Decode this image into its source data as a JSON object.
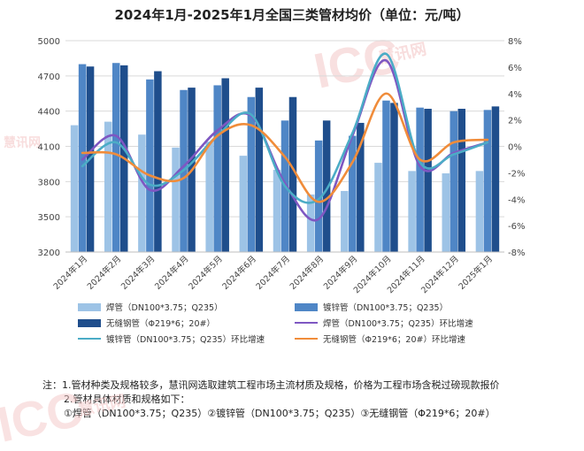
{
  "title": "2024年1月-2025年1月全国三类管材均价（单位：元/吨）",
  "colors": {
    "bar1": "#9DC3E6",
    "bar2": "#4F86C6",
    "bar3": "#1F4E8C",
    "line1": "#7E57C2",
    "line2": "#4BACC6",
    "line3": "#F08C3A"
  },
  "chart_data": {
    "type": "bar",
    "categories": [
      "2024年1月",
      "2024年2月",
      "2024年3月",
      "2024年4月",
      "2024年5月",
      "2024年6月",
      "2024年7月",
      "2024年8月",
      "2024年9月",
      "2024年10月",
      "2024年11月",
      "2024年12月",
      "2025年1月"
    ],
    "ylim": [
      3200,
      5000
    ],
    "yticks": [
      "5000",
      "4700",
      "4400",
      "4100",
      "3800",
      "3500",
      "3200"
    ],
    "y2lim": [
      -8,
      8
    ],
    "y2ticks": [
      "8%",
      "6%",
      "4%",
      "2%",
      "0%",
      "-2%",
      "-4%",
      "-6%",
      "-8%"
    ],
    "grid": true,
    "legend_position": "bottom",
    "series": [
      {
        "name": "焊管（DN100*3.75；Q235）",
        "kind": "bar",
        "axis": "left",
        "values": [
          4280,
          4310,
          4200,
          4090,
          4140,
          4020,
          3900,
          3690,
          3720,
          3960,
          3890,
          3870,
          3890
        ]
      },
      {
        "name": "镀锌管（DN100*3.75；Q235）",
        "kind": "bar",
        "axis": "left",
        "values": [
          4800,
          4810,
          4670,
          4580,
          4620,
          4520,
          4320,
          4150,
          4190,
          4490,
          4430,
          4400,
          4410
        ]
      },
      {
        "name": "无缝钢管（Φ219*6；20#）",
        "kind": "bar",
        "axis": "left",
        "values": [
          4780,
          4790,
          4740,
          4600,
          4680,
          4600,
          4520,
          4320,
          4300,
          4470,
          4420,
          4420,
          4440
        ]
      },
      {
        "name": "焊管（DN100*3.75；Q235）环比增速",
        "kind": "line",
        "axis": "right",
        "values": [
          -1.0,
          0.8,
          -3.3,
          -1.5,
          1.2,
          2.3,
          -2.8,
          -5.5,
          0.8,
          6.5,
          -1.5,
          -0.5,
          0.3
        ]
      },
      {
        "name": "镀锌管（DN100*3.75；Q235）环比增速",
        "kind": "line",
        "axis": "right",
        "values": [
          -1.5,
          0.3,
          -2.9,
          -1.8,
          0.8,
          2.4,
          -3.0,
          -4.0,
          1.0,
          7.0,
          -1.2,
          -0.6,
          0.3
        ]
      },
      {
        "name": "无缝钢管（Φ219*6；20#）环比增速",
        "kind": "line",
        "axis": "right",
        "values": [
          -0.5,
          -0.6,
          -2.2,
          -2.4,
          0.8,
          1.6,
          -0.8,
          -4.2,
          -1.2,
          4.0,
          -1.0,
          0.3,
          0.5
        ]
      }
    ]
  },
  "legend": [
    {
      "label": "焊管（DN100*3.75；Q235）",
      "kind": "bar",
      "color": "#9DC3E6"
    },
    {
      "label": "镀锌管（DN100*3.75；Q235）",
      "kind": "bar",
      "color": "#4F86C6"
    },
    {
      "label": "无缝钢管（Φ219*6；20#）",
      "kind": "bar",
      "color": "#1F4E8C"
    },
    {
      "label": "焊管（DN100*3.75；Q235）环比增速",
      "kind": "line",
      "color": "#7E57C2"
    },
    {
      "label": "镀锌管（DN100*3.75；Q235）环比增速",
      "kind": "line",
      "color": "#4BACC6"
    },
    {
      "label": "无缝钢管（Φ219*6；20#）环比增速",
      "kind": "line",
      "color": "#F08C3A"
    }
  ],
  "notes": {
    "line1": "注：1.管材种类及规格较多，慧讯网选取建筑工程市场主流材质及规格，价格为工程市场含税过磅现款报价",
    "line2": "2.管材具体材质和规格如下：",
    "line3": "①焊管（DN100*3.75；Q235）②镀锌管（DN100*3.75；Q235）③无缝钢管（Φ219*6；20#）"
  },
  "watermark": {
    "brand": "ICC",
    "name": "慧讯网"
  }
}
